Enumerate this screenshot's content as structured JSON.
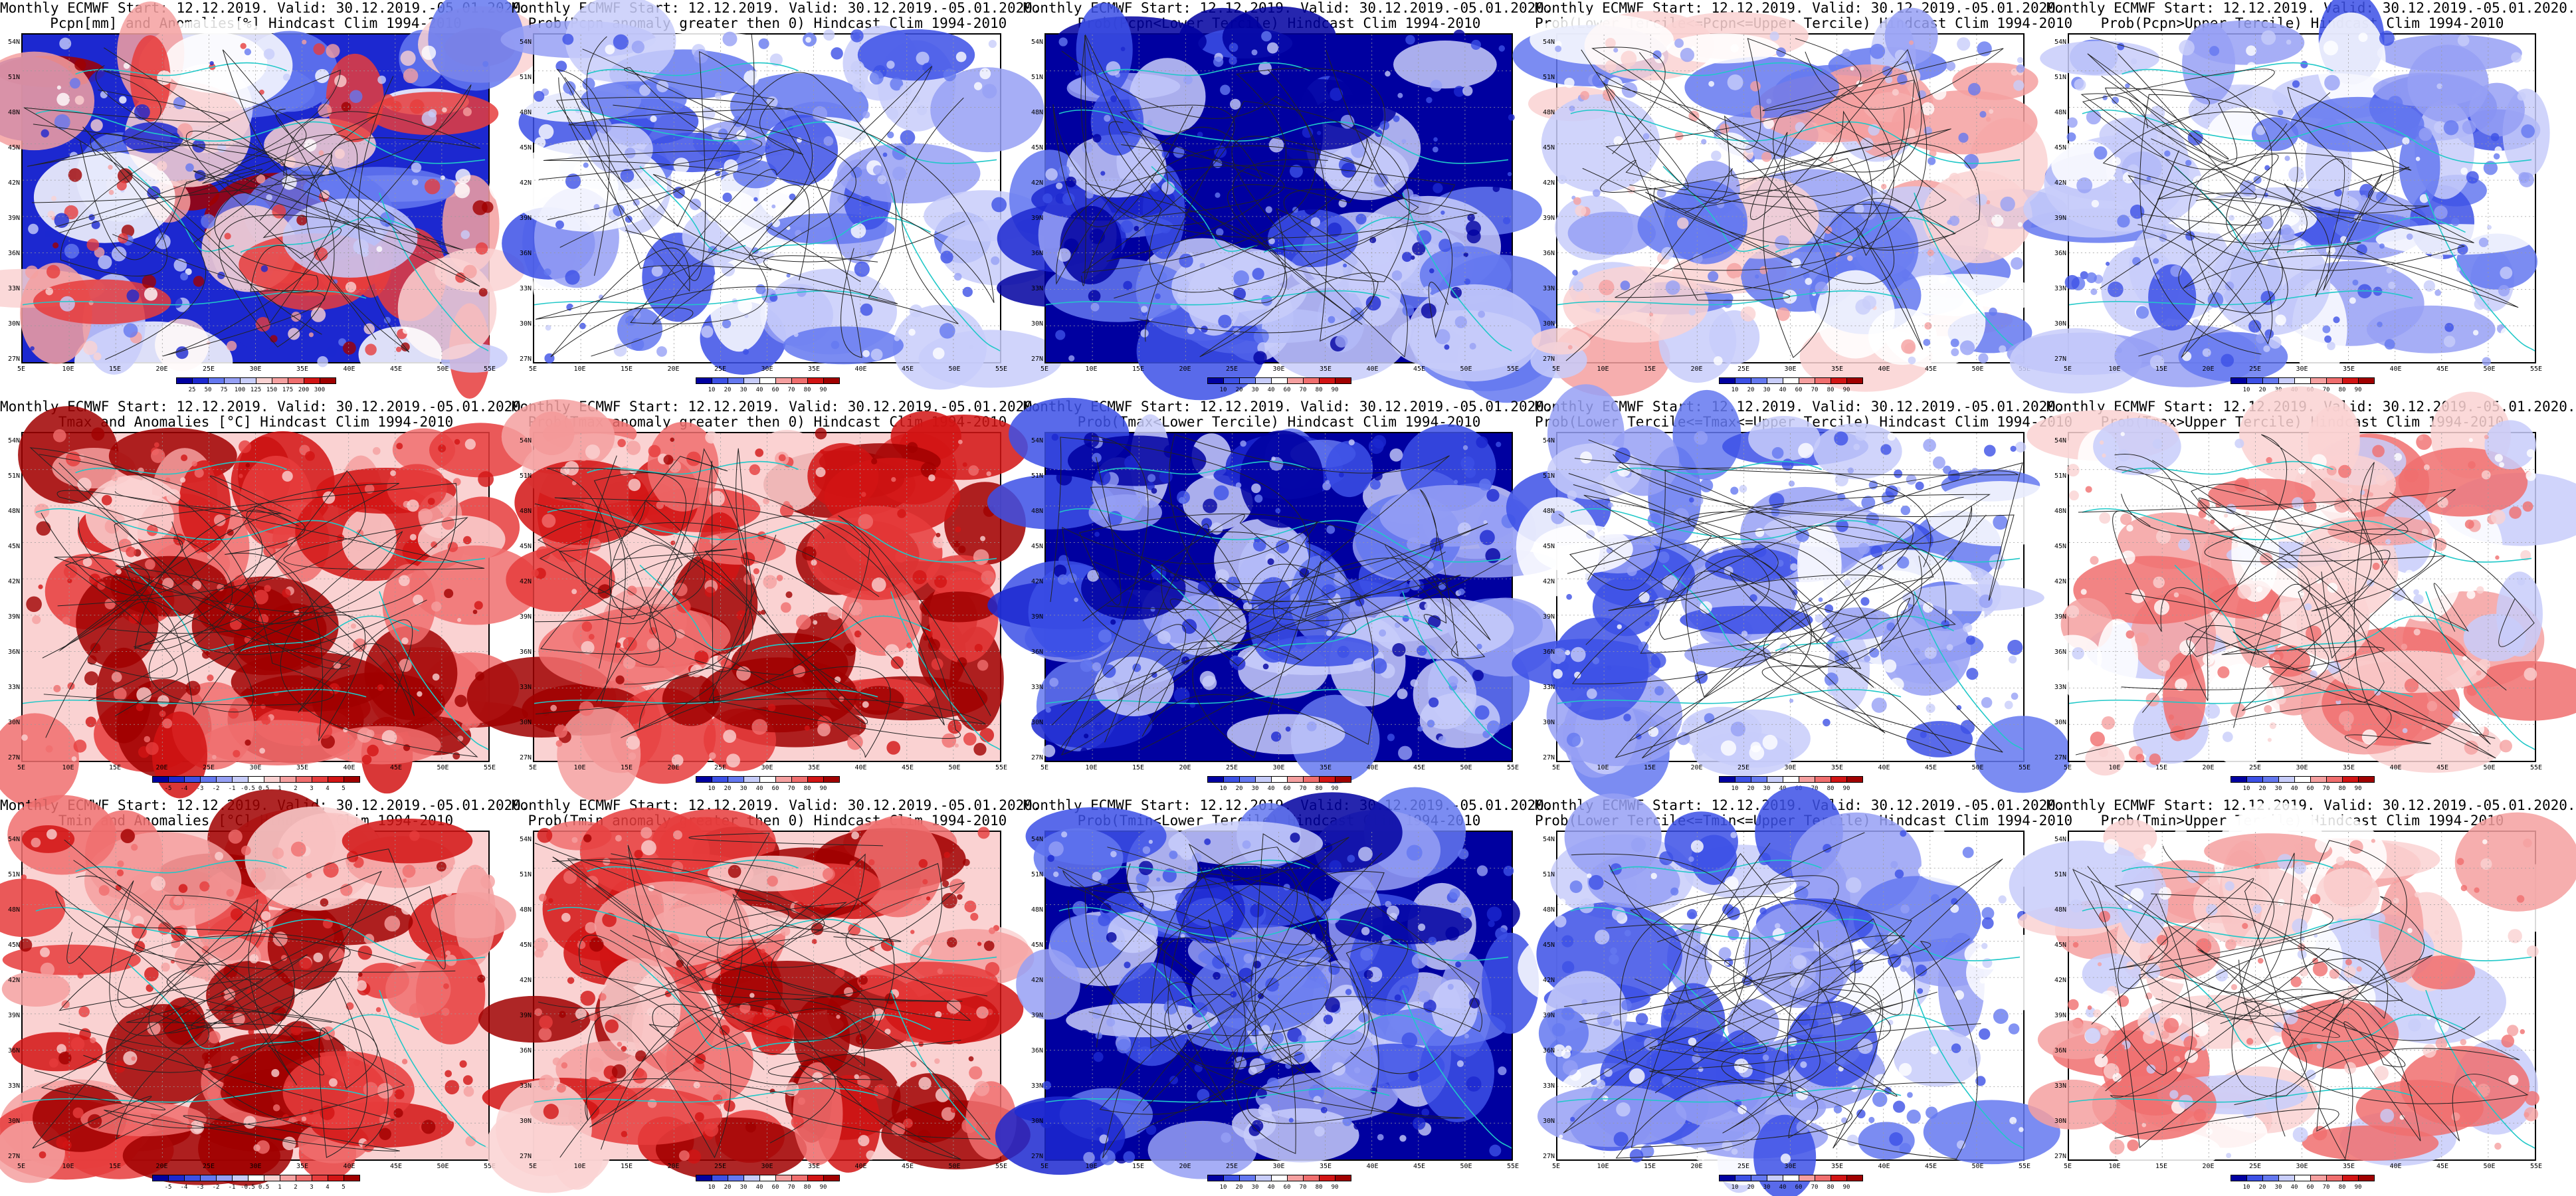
{
  "lat_labels": [
    "54N",
    "51N",
    "48N",
    "45N",
    "42N",
    "39N",
    "36N",
    "33N",
    "30N",
    "27N"
  ],
  "lon_labels": [
    "5E",
    "10E",
    "15E",
    "20E",
    "25E",
    "30E",
    "35E",
    "40E",
    "45E",
    "50E",
    "55E"
  ],
  "colors": {
    "blue": [
      "#0000a0",
      "#1c28d0",
      "#3c50e6",
      "#6478f0",
      "#96a0f5",
      "#c8cdfa",
      "#ffffff"
    ],
    "red": [
      "#ffffff",
      "#fad2d2",
      "#f5a0a0",
      "#f06e6e",
      "#e63c3c",
      "#d21414",
      "#a00000"
    ],
    "contour_black": "#222222",
    "contour_cyan": "#20c8c8"
  },
  "panels": [
    {
      "id": "pcpn-anom",
      "line1": "Monthly ECMWF Start: 12.12.2019. Valid: 30.12.2019.-05.01.2020.",
      "line2": "Pcpn[mm] and Anomalies[%] Hindcast Clim 1994-2010",
      "scheme": "div",
      "cbar_labels": [
        "25",
        "50",
        "75",
        "100",
        "125",
        "150",
        "175",
        "200",
        "300"
      ]
    },
    {
      "id": "pcpn-prob-gt0",
      "line1": "Monthly ECMWF Start: 12.12.2019. Valid: 30.12.2019.-05.01.2020.",
      "line2": "Prob(Pcpn anomaly greater then 0) Hindcast Clim 1994-2010",
      "scheme": "blue",
      "cbar_labels": [
        "10",
        "20",
        "30",
        "40",
        "60",
        "70",
        "80",
        "90"
      ]
    },
    {
      "id": "pcpn-prob-lower",
      "line1": "Monthly ECMWF Start: 12.12.2019. Valid: 30.12.2019.-05.01.2020.",
      "line2": "Prob(Pcpn<Lower Tercile) Hindcast Clim 1994-2010",
      "scheme": "deepblue",
      "cbar_labels": [
        "10",
        "20",
        "30",
        "40",
        "60",
        "70",
        "80",
        "90"
      ]
    },
    {
      "id": "pcpn-prob-middle",
      "line1": "Monthly ECMWF Start: 12.12.2019. Valid: 30.12.2019.-05.01.2020.",
      "line2": "Prob(Lower Tercile<=Pcpn<=Upper Tercile) Hindcast Clim 1994-2010",
      "scheme": "mixed",
      "cbar_labels": [
        "10",
        "20",
        "30",
        "40",
        "60",
        "70",
        "80",
        "90"
      ]
    },
    {
      "id": "pcpn-prob-upper",
      "line1": "Monthly ECMWF Start: 12.12.2019. Valid: 30.12.2019.-05.01.2020.",
      "line2": "Prob(Pcpn>Upper Tercile) Hindcast Clim 1994-2010",
      "scheme": "blue",
      "cbar_labels": [
        "10",
        "20",
        "30",
        "40",
        "60",
        "70",
        "80",
        "90"
      ]
    },
    {
      "id": "tmax-anom",
      "line1": "Monthly ECMWF Start: 12.12.2019. Valid: 30.12.2019.-05.01.2020.",
      "line2": "Tmax and Anomalies [°C] Hindcast Clim 1994-2010",
      "scheme": "red",
      "cbar_labels": [
        "-5",
        "-4",
        "-3",
        "-2",
        "-1",
        "-0.5",
        "0.5",
        "1",
        "2",
        "3",
        "4",
        "5"
      ]
    },
    {
      "id": "tmax-prob-gt0",
      "line1": "Monthly ECMWF Start: 12.12.2019. Valid: 30.12.2019.-05.01.2020.",
      "line2": "Prob(Tmax anomaly greater then 0) Hindcast Clim 1994-2010",
      "scheme": "red",
      "cbar_labels": [
        "10",
        "20",
        "30",
        "40",
        "60",
        "70",
        "80",
        "90"
      ]
    },
    {
      "id": "tmax-prob-lower",
      "line1": "Monthly ECMWF Start: 12.12.2019. Valid: 30.12.2019.-05.01.2020.",
      "line2": "Prob(Tmax<Lower Tercile) Hindcast Clim 1994-2010",
      "scheme": "deepblue",
      "cbar_labels": [
        "10",
        "20",
        "30",
        "40",
        "60",
        "70",
        "80",
        "90"
      ]
    },
    {
      "id": "tmax-prob-middle",
      "line1": "Monthly ECMWF Start: 12.12.2019. Valid: 30.12.2019.-05.01.2020.",
      "line2": "Prob(Lower Tercile<=Tmax<=Upper Tercile) Hindcast Clim 1994-2010",
      "scheme": "blue",
      "cbar_labels": [
        "10",
        "20",
        "30",
        "40",
        "60",
        "70",
        "80",
        "90"
      ]
    },
    {
      "id": "tmax-prob-upper",
      "line1": "Monthly ECMWF Start: 12.12.2019. Valid: 30.12.2019.-05.01.2020.",
      "line2": "Prob(Tmax>Upper Tercile) Hindcast Clim 1994-2010",
      "scheme": "lightred",
      "cbar_labels": [
        "10",
        "20",
        "30",
        "40",
        "60",
        "70",
        "80",
        "90"
      ]
    },
    {
      "id": "tmin-anom",
      "line1": "Monthly ECMWF Start: 12.12.2019. Valid: 30.12.2019.-05.01.2020.",
      "line2": "Tmin and Anomalies [°C] Hindcast Clim 1994-2010",
      "scheme": "red",
      "cbar_labels": [
        "-5",
        "-4",
        "-3",
        "-2",
        "-1",
        "-0.5",
        "0.5",
        "1",
        "2",
        "3",
        "4",
        "5"
      ]
    },
    {
      "id": "tmin-prob-gt0",
      "line1": "Monthly ECMWF Start: 12.12.2019. Valid: 30.12.2019.-05.01.2020.",
      "line2": "Prob(Tmin anomaly greater then 0) Hindcast Clim 1994-2010",
      "scheme": "red",
      "cbar_labels": [
        "10",
        "20",
        "30",
        "40",
        "60",
        "70",
        "80",
        "90"
      ]
    },
    {
      "id": "tmin-prob-lower",
      "line1": "Monthly ECMWF Start: 12.12.2019. Valid: 30.12.2019.-05.01.2020.",
      "line2": "Prob(Tmin<Lower Tercile) Hindcast Clim 1994-2010",
      "scheme": "deepblue",
      "cbar_labels": [
        "10",
        "20",
        "30",
        "40",
        "60",
        "70",
        "80",
        "90"
      ]
    },
    {
      "id": "tmin-prob-middle",
      "line1": "Monthly ECMWF Start: 12.12.2019. Valid: 30.12.2019.-05.01.2020.",
      "line2": "Prob(Lower Tercile<=Tmin<=Upper Tercile) Hindcast Clim 1994-2010",
      "scheme": "blue",
      "cbar_labels": [
        "10",
        "20",
        "30",
        "40",
        "60",
        "70",
        "80",
        "90"
      ]
    },
    {
      "id": "tmin-prob-upper",
      "line1": "Monthly ECMWF Start: 12.12.2019. Valid: 30.12.2019.-05.01.2020.",
      "line2": "Prob(Tmin>Upper Tercile) Hindcast Clim 1994-2010",
      "scheme": "lightred",
      "cbar_labels": [
        "10",
        "20",
        "30",
        "40",
        "60",
        "70",
        "80",
        "90"
      ]
    }
  ]
}
